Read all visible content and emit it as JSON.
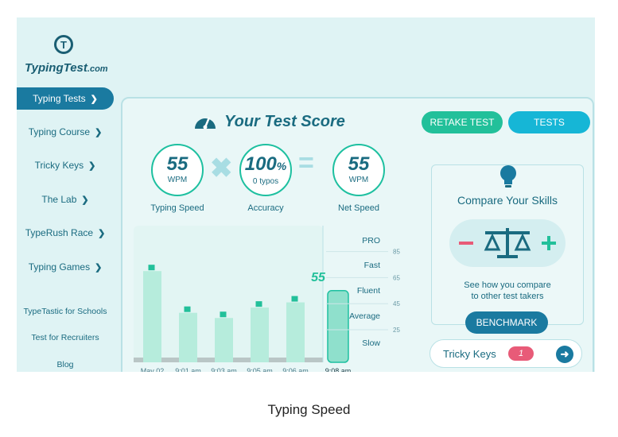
{
  "logo": {
    "name": "TypingTest",
    "suffix": ".com"
  },
  "sidebar": {
    "items": [
      {
        "label": "Typing Tests",
        "active": true
      },
      {
        "label": "Typing Course"
      },
      {
        "label": "Tricky Keys"
      },
      {
        "label": "The Lab"
      },
      {
        "label": "TypeRush Race"
      },
      {
        "label": "Typing Games"
      }
    ],
    "links": [
      "TypeTastic for Schools",
      "Test for Recruiters",
      "Blog"
    ]
  },
  "header": {
    "title": "Your Test Score",
    "retake": "RETAKE TEST",
    "tests": "TESTS"
  },
  "score": {
    "wpm": {
      "value": "55",
      "unit": "WPM",
      "label": "Typing Speed"
    },
    "accuracy": {
      "value": "100",
      "unit": "%",
      "sub": "0 typos",
      "label": "Accuracy"
    },
    "net": {
      "value": "55",
      "unit": "WPM",
      "label": "Net Speed"
    }
  },
  "chart_data": {
    "type": "bar",
    "categories": [
      "May 02",
      "9:01 am",
      "9:03 am",
      "9:05 am",
      "9:06 am",
      "9:08 am"
    ],
    "values": [
      70,
      38,
      34,
      42,
      46,
      55
    ],
    "current_label": "55",
    "ylim": [
      0,
      100
    ],
    "levels": [
      "PRO",
      "Fast",
      "Fluent",
      "Average",
      "Slow"
    ],
    "yticks": [
      85,
      65,
      45,
      25
    ]
  },
  "compare": {
    "title": "Compare Your Skills",
    "text1": "See how you compare",
    "text2": "to other test takers",
    "button": "BENCHMARK"
  },
  "tricky": {
    "label": "Tricky Keys",
    "count": "1"
  },
  "caption": "Typing Speed",
  "colors": {
    "accent": "#1a7aa0",
    "green": "#22c09a",
    "cyan": "#16b6d6",
    "pink": "#e85b78"
  }
}
